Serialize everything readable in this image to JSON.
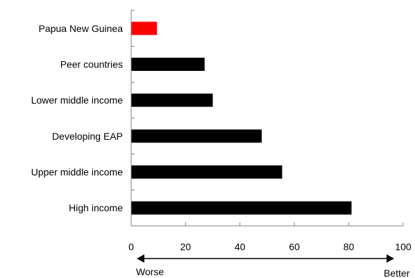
{
  "chart_data": {
    "type": "bar",
    "orientation": "horizontal",
    "title": "",
    "xlabel": "",
    "ylabel": "",
    "categories": [
      "Papua New Guinea",
      "Peer countries",
      "Lower middle income",
      "Developing EAP",
      "Upper middle income",
      "High income"
    ],
    "values": [
      9.5,
      27,
      30,
      48,
      55.5,
      81
    ],
    "bar_colors": [
      "#ff0000",
      "#000000",
      "#000000",
      "#000000",
      "#000000",
      "#000000"
    ],
    "xlim": [
      0,
      100
    ],
    "x_ticks": [
      0,
      20,
      40,
      60,
      80,
      100
    ],
    "grid": false,
    "legend": "none",
    "annotations": {
      "left_label": "Worse",
      "right_label": "Better",
      "arrow": "double-headed"
    }
  }
}
